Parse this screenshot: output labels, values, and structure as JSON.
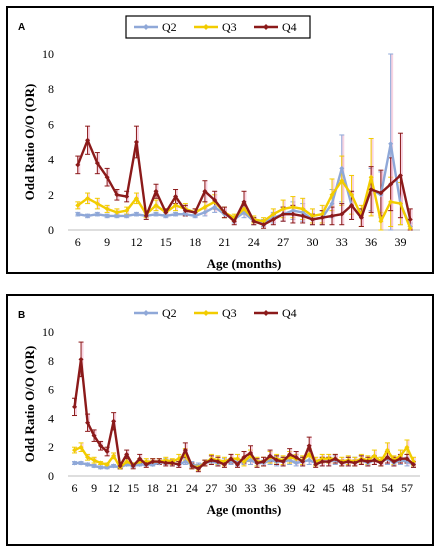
{
  "chart_data": [
    {
      "panel_label": "A",
      "type": "line",
      "xlabel": "Age  (months)",
      "ylabel": "Odd Ratio O/O  (OR)",
      "ylim": [
        0,
        10
      ],
      "yticks": [
        0,
        2,
        4,
        6,
        8,
        10
      ],
      "xlim": [
        5,
        41
      ],
      "xticks": [
        6,
        9,
        12,
        15,
        18,
        21,
        24,
        27,
        30,
        33,
        36,
        39
      ],
      "legend_position": "top-center",
      "legend_boxed": true,
      "grid": false,
      "series": [
        {
          "name": "Q2",
          "color": "#8fa8d8",
          "x": [
            6,
            7,
            8,
            9,
            10,
            11,
            12,
            13,
            14,
            15,
            16,
            17,
            18,
            19,
            20,
            21,
            22,
            23,
            24,
            25,
            26,
            27,
            28,
            29,
            30,
            31,
            32,
            33,
            34,
            35,
            36,
            37,
            38,
            39,
            40
          ],
          "y": [
            0.9,
            0.8,
            0.9,
            0.8,
            0.8,
            0.8,
            0.9,
            0.8,
            0.9,
            0.8,
            0.9,
            0.9,
            0.8,
            1.0,
            1.3,
            0.9,
            0.6,
            1.0,
            0.5,
            0.4,
            0.7,
            0.9,
            1.1,
            1.0,
            0.6,
            0.7,
            1.5,
            3.5,
            1.4,
            0.7,
            2.3,
            2.0,
            4.9,
            1.5,
            0.2
          ],
          "err": [
            0.1,
            0.1,
            0.1,
            0.1,
            0.1,
            0.1,
            0.1,
            0.1,
            0.1,
            0.1,
            0.1,
            0.1,
            0.1,
            0.2,
            0.3,
            0.2,
            0.2,
            0.3,
            0.2,
            0.2,
            0.3,
            0.4,
            0.5,
            0.5,
            0.3,
            0.4,
            0.8,
            1.9,
            0.8,
            0.5,
            1.2,
            1.3,
            5.1,
            1.2,
            0.2
          ]
        },
        {
          "name": "Q3",
          "color": "#f2cc00",
          "x": [
            6,
            7,
            8,
            9,
            10,
            11,
            12,
            13,
            14,
            15,
            16,
            17,
            18,
            19,
            20,
            21,
            22,
            23,
            24,
            25,
            26,
            27,
            28,
            29,
            30,
            31,
            32,
            33,
            34,
            35,
            36,
            37,
            38,
            39,
            40
          ],
          "y": [
            1.4,
            1.8,
            1.5,
            1.2,
            1.0,
            1.1,
            1.8,
            0.9,
            1.4,
            1.0,
            1.4,
            1.2,
            1.0,
            1.3,
            1.6,
            1.0,
            0.7,
            1.2,
            0.6,
            0.5,
            0.9,
            1.2,
            1.3,
            1.2,
            0.8,
            0.9,
            2.0,
            2.8,
            2.0,
            0.8,
            3.0,
            0.5,
            1.6,
            1.5,
            0.1
          ],
          "err": [
            0.2,
            0.3,
            0.3,
            0.2,
            0.2,
            0.2,
            0.3,
            0.2,
            0.3,
            0.2,
            0.3,
            0.3,
            0.2,
            0.3,
            0.4,
            0.3,
            0.2,
            0.3,
            0.2,
            0.2,
            0.3,
            0.5,
            0.6,
            0.6,
            0.4,
            0.5,
            0.9,
            1.4,
            1.1,
            0.6,
            2.2,
            0.5,
            1.4,
            1.2,
            0.1
          ]
        },
        {
          "name": "Q4",
          "color": "#8b1a1a",
          "x": [
            6,
            7,
            8,
            9,
            10,
            11,
            12,
            13,
            14,
            15,
            16,
            17,
            18,
            19,
            20,
            21,
            22,
            23,
            24,
            25,
            26,
            27,
            28,
            29,
            30,
            31,
            32,
            33,
            34,
            35,
            36,
            37,
            38,
            39,
            40
          ],
          "y": [
            3.7,
            5.1,
            3.8,
            3.0,
            2.0,
            1.9,
            5.0,
            0.8,
            2.2,
            1.0,
            1.9,
            1.1,
            1.0,
            2.2,
            1.7,
            1.0,
            0.5,
            1.6,
            0.5,
            0.3,
            0.6,
            0.9,
            0.9,
            0.8,
            0.6,
            0.7,
            0.8,
            0.9,
            1.4,
            0.7,
            2.3,
            2.1,
            2.6,
            3.1,
            0.6
          ],
          "err": [
            0.5,
            0.8,
            0.6,
            0.5,
            0.3,
            0.3,
            0.9,
            0.2,
            0.4,
            0.2,
            0.4,
            0.3,
            0.2,
            0.6,
            0.5,
            0.3,
            0.2,
            0.6,
            0.2,
            0.2,
            0.3,
            0.4,
            0.5,
            0.4,
            0.3,
            0.4,
            0.5,
            0.6,
            0.8,
            0.5,
            1.3,
            1.3,
            1.5,
            2.4,
            0.6
          ]
        }
      ]
    },
    {
      "panel_label": "B",
      "type": "line",
      "xlabel": "Age  (months)",
      "ylabel": "Odd Ratio O/O  (OR)",
      "ylim": [
        0,
        10
      ],
      "yticks": [
        0,
        2,
        4,
        6,
        8,
        10
      ],
      "xlim": [
        5,
        59
      ],
      "xticks": [
        6,
        9,
        12,
        15,
        18,
        21,
        24,
        27,
        30,
        33,
        36,
        39,
        42,
        45,
        48,
        51,
        54,
        57
      ],
      "legend_position": "top-center",
      "legend_boxed": false,
      "grid": false,
      "series": [
        {
          "name": "Q2",
          "color": "#8fa8d8",
          "x": [
            6,
            7,
            8,
            9,
            10,
            11,
            12,
            13,
            14,
            15,
            16,
            17,
            18,
            19,
            20,
            21,
            22,
            23,
            24,
            25,
            26,
            27,
            28,
            29,
            30,
            31,
            32,
            33,
            34,
            35,
            36,
            37,
            38,
            39,
            40,
            41,
            42,
            43,
            44,
            45,
            46,
            47,
            48,
            49,
            50,
            51,
            52,
            53,
            54,
            55,
            56,
            57,
            58
          ],
          "y": [
            0.9,
            0.9,
            0.8,
            0.7,
            0.6,
            0.6,
            0.7,
            0.6,
            0.8,
            0.7,
            0.8,
            0.8,
            0.8,
            0.9,
            1.0,
            0.9,
            0.8,
            1.0,
            0.8,
            0.7,
            0.9,
            1.0,
            0.9,
            1.0,
            1.0,
            0.9,
            1.0,
            1.1,
            0.9,
            0.9,
            1.1,
            1.0,
            1.0,
            1.1,
            0.9,
            1.0,
            1.1,
            0.9,
            1.0,
            1.0,
            1.1,
            0.9,
            1.0,
            1.0,
            1.1,
            0.9,
            1.1,
            1.0,
            1.2,
            0.9,
            1.1,
            1.0,
            0.8
          ],
          "err": [
            0.1,
            0.1,
            0.1,
            0.1,
            0.1,
            0.1,
            0.1,
            0.1,
            0.1,
            0.1,
            0.1,
            0.1,
            0.1,
            0.1,
            0.2,
            0.2,
            0.2,
            0.2,
            0.2,
            0.2,
            0.2,
            0.2,
            0.2,
            0.2,
            0.2,
            0.2,
            0.2,
            0.3,
            0.2,
            0.2,
            0.3,
            0.3,
            0.3,
            0.3,
            0.2,
            0.3,
            0.3,
            0.2,
            0.3,
            0.3,
            0.3,
            0.2,
            0.3,
            0.3,
            0.3,
            0.2,
            0.3,
            0.3,
            0.4,
            0.2,
            0.3,
            0.3,
            0.2
          ]
        },
        {
          "name": "Q3",
          "color": "#f2cc00",
          "x": [
            6,
            7,
            8,
            9,
            10,
            11,
            12,
            13,
            14,
            15,
            16,
            17,
            18,
            19,
            20,
            21,
            22,
            23,
            24,
            25,
            26,
            27,
            28,
            29,
            30,
            31,
            32,
            33,
            34,
            35,
            36,
            37,
            38,
            39,
            40,
            41,
            42,
            43,
            44,
            45,
            46,
            47,
            48,
            49,
            50,
            51,
            52,
            53,
            54,
            55,
            56,
            57,
            58
          ],
          "y": [
            1.8,
            2.0,
            1.3,
            1.1,
            0.9,
            0.8,
            1.4,
            0.6,
            1.0,
            0.8,
            1.0,
            1.0,
            1.0,
            1.0,
            1.1,
            1.0,
            1.2,
            1.5,
            0.7,
            0.6,
            0.9,
            1.2,
            1.1,
            1.0,
            1.2,
            1.2,
            1.0,
            1.4,
            1.0,
            1.0,
            1.3,
            1.2,
            1.1,
            1.3,
            1.2,
            1.1,
            1.5,
            1.0,
            1.2,
            1.2,
            1.2,
            1.0,
            1.1,
            1.0,
            1.2,
            1.1,
            1.4,
            1.0,
            1.8,
            1.1,
            1.4,
            2.0,
            1.0
          ],
          "err": [
            0.2,
            0.3,
            0.2,
            0.2,
            0.1,
            0.1,
            0.2,
            0.1,
            0.2,
            0.1,
            0.2,
            0.2,
            0.2,
            0.2,
            0.2,
            0.2,
            0.3,
            0.4,
            0.2,
            0.2,
            0.2,
            0.3,
            0.3,
            0.3,
            0.3,
            0.3,
            0.3,
            0.4,
            0.3,
            0.3,
            0.4,
            0.3,
            0.3,
            0.4,
            0.3,
            0.3,
            0.4,
            0.3,
            0.3,
            0.3,
            0.3,
            0.3,
            0.3,
            0.3,
            0.3,
            0.3,
            0.4,
            0.3,
            0.5,
            0.3,
            0.4,
            0.5,
            0.3
          ]
        },
        {
          "name": "Q4",
          "color": "#8b1a1a",
          "x": [
            6,
            7,
            8,
            9,
            10,
            11,
            12,
            13,
            14,
            15,
            16,
            17,
            18,
            19,
            20,
            21,
            22,
            23,
            24,
            25,
            26,
            27,
            28,
            29,
            30,
            31,
            32,
            33,
            34,
            35,
            36,
            37,
            38,
            39,
            40,
            41,
            42,
            43,
            44,
            45,
            46,
            47,
            48,
            49,
            50,
            51,
            52,
            53,
            54,
            55,
            56,
            57,
            58
          ],
          "y": [
            4.8,
            8.1,
            3.7,
            2.8,
            2.1,
            1.7,
            3.8,
            0.7,
            1.5,
            0.7,
            1.2,
            0.8,
            1.0,
            1.0,
            0.9,
            0.9,
            0.8,
            1.8,
            0.7,
            0.5,
            0.9,
            1.1,
            1.0,
            0.8,
            1.2,
            0.8,
            1.3,
            1.6,
            0.9,
            1.0,
            1.4,
            1.1,
            1.0,
            1.5,
            1.3,
            1.0,
            2.1,
            0.8,
            1.0,
            1.0,
            1.2,
            0.9,
            1.0,
            0.9,
            1.1,
            1.0,
            1.1,
            0.9,
            1.3,
            1.0,
            1.2,
            1.2,
            0.8
          ],
          "err": [
            0.6,
            1.2,
            0.6,
            0.4,
            0.3,
            0.3,
            0.6,
            0.2,
            0.3,
            0.2,
            0.3,
            0.2,
            0.2,
            0.2,
            0.2,
            0.2,
            0.2,
            0.5,
            0.2,
            0.2,
            0.2,
            0.3,
            0.3,
            0.2,
            0.3,
            0.2,
            0.4,
            0.5,
            0.3,
            0.3,
            0.4,
            0.3,
            0.3,
            0.4,
            0.4,
            0.3,
            0.6,
            0.2,
            0.3,
            0.3,
            0.3,
            0.2,
            0.3,
            0.2,
            0.3,
            0.3,
            0.3,
            0.2,
            0.4,
            0.3,
            0.3,
            0.3,
            0.2
          ]
        }
      ]
    }
  ]
}
